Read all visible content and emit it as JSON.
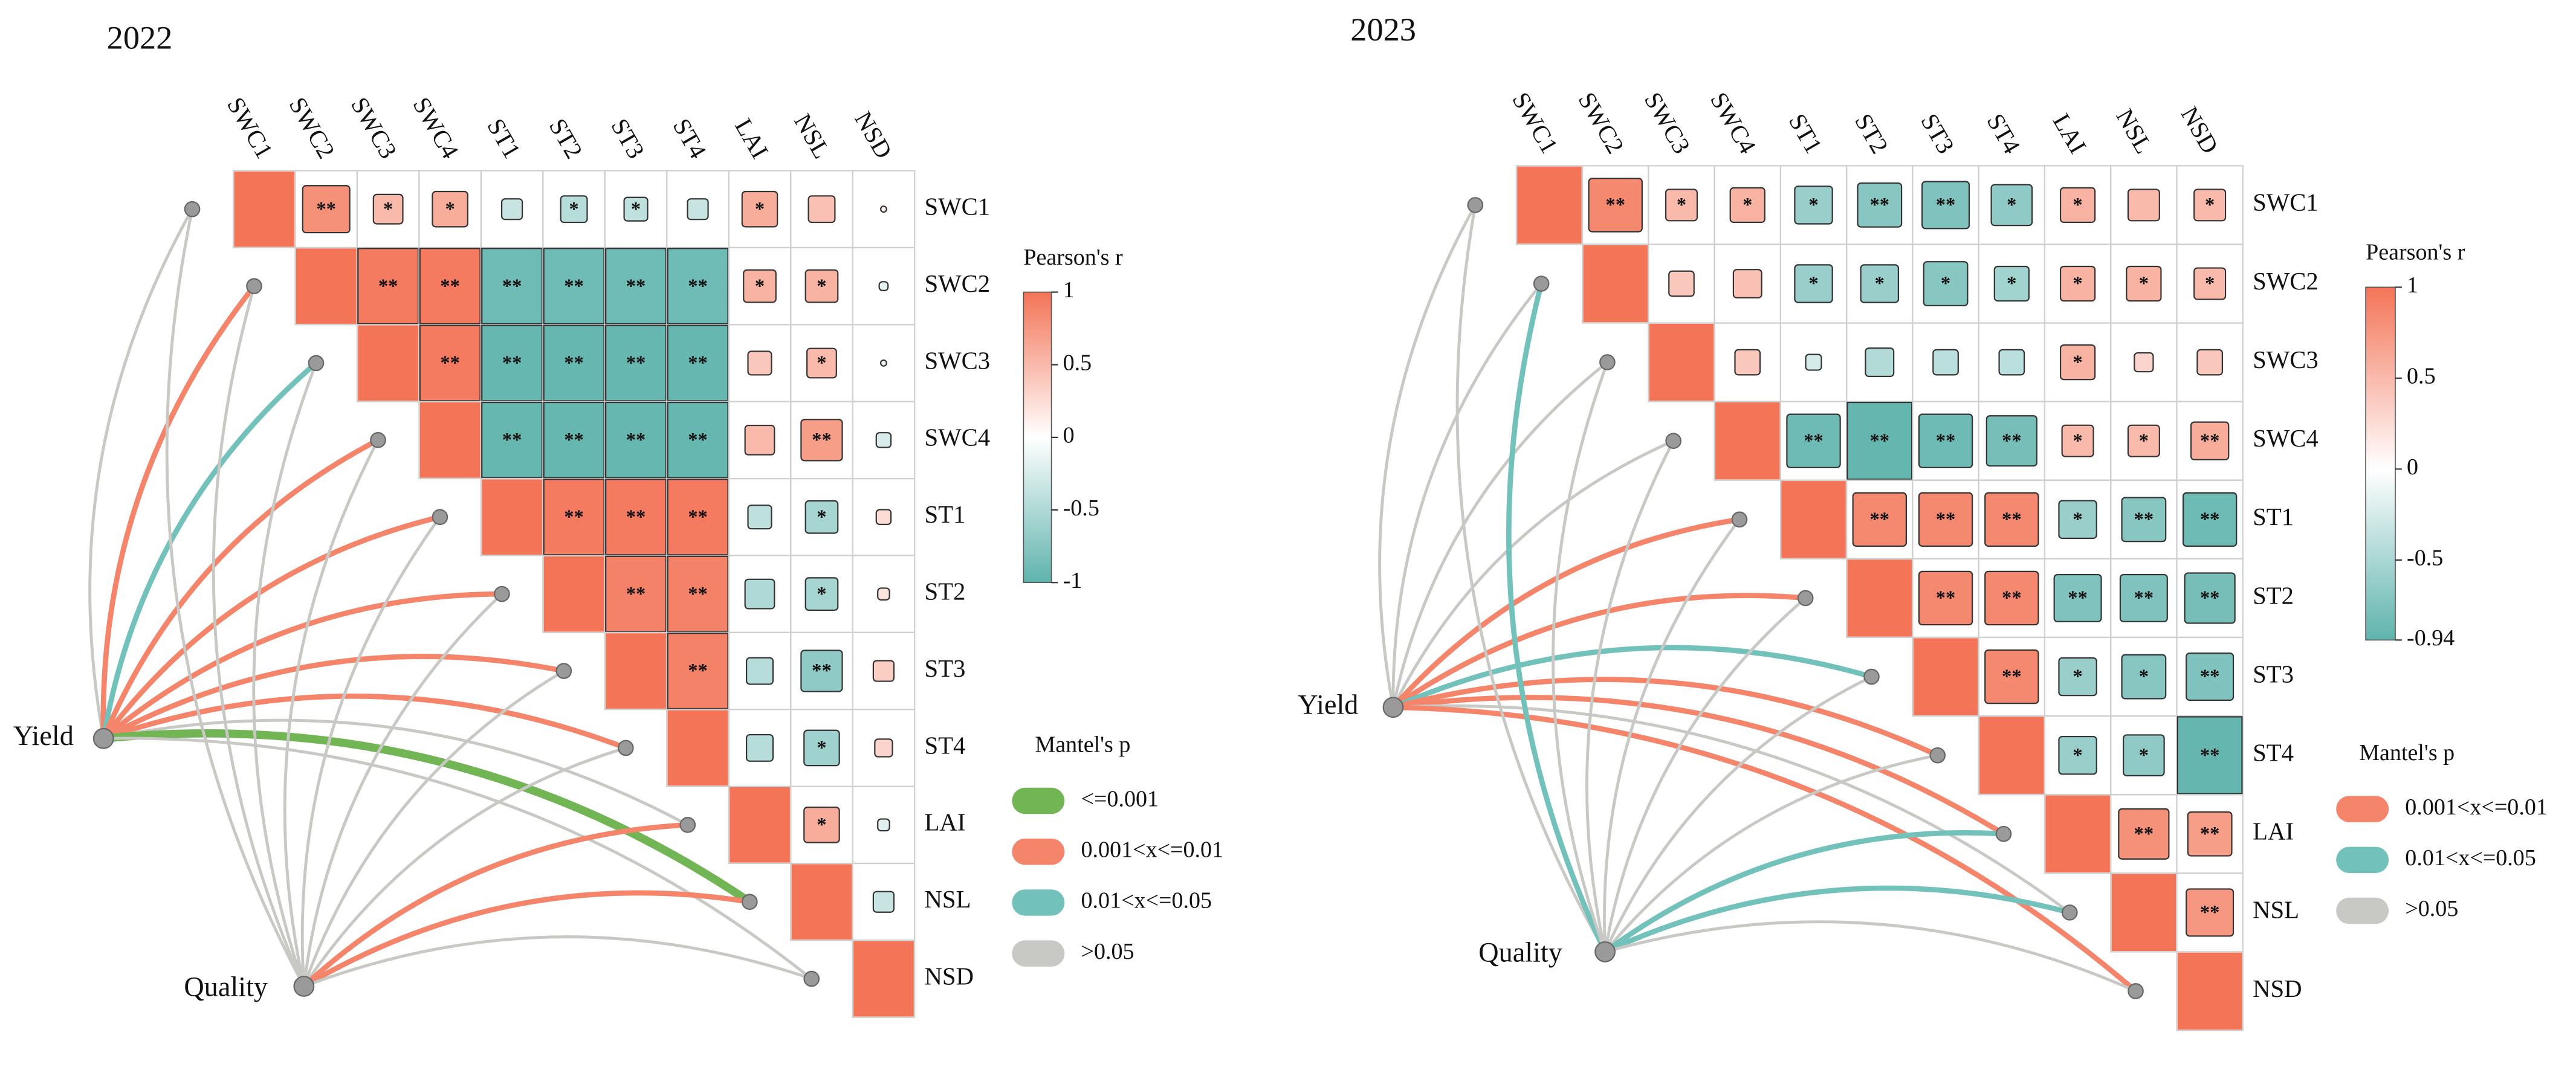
{
  "chart_data": [
    {
      "type": "mantel",
      "title": "2022",
      "variables": [
        "SWC1",
        "SWC2",
        "SWC3",
        "SWC4",
        "ST1",
        "ST2",
        "ST3",
        "ST4",
        "LAI",
        "NSL",
        "NSD"
      ],
      "values": [
        [
          1,
          0.8,
          0.5,
          0.6,
          -0.35,
          -0.45,
          -0.4,
          -0.35,
          0.6,
          0.45,
          0.1
        ],
        [
          null,
          1,
          0.95,
          0.95,
          -0.9,
          -0.9,
          -0.9,
          -0.9,
          0.55,
          0.55,
          -0.15
        ],
        [
          null,
          null,
          1,
          0.95,
          -0.95,
          -0.95,
          -0.95,
          -0.95,
          0.4,
          0.5,
          -0.1
        ],
        [
          null,
          null,
          null,
          1,
          -0.95,
          -0.95,
          -0.95,
          -0.95,
          0.5,
          0.7,
          -0.25
        ],
        [
          null,
          null,
          null,
          null,
          1,
          0.95,
          0.95,
          0.95,
          -0.4,
          -0.55,
          0.25
        ],
        [
          null,
          null,
          null,
          null,
          null,
          1,
          0.9,
          0.9,
          -0.5,
          -0.55,
          0.2
        ],
        [
          null,
          null,
          null,
          null,
          null,
          null,
          1,
          0.9,
          -0.45,
          -0.7,
          0.35
        ],
        [
          null,
          null,
          null,
          null,
          null,
          null,
          null,
          1,
          -0.45,
          -0.6,
          0.3
        ],
        [
          null,
          null,
          null,
          null,
          null,
          null,
          null,
          null,
          1,
          0.6,
          -0.2
        ],
        [
          null,
          null,
          null,
          null,
          null,
          null,
          null,
          null,
          null,
          1,
          -0.35
        ],
        [
          null,
          null,
          null,
          null,
          null,
          null,
          null,
          null,
          null,
          null,
          1
        ]
      ],
      "signif": [
        [
          null,
          "**",
          "*",
          "*",
          null,
          "*",
          "*",
          null,
          "*",
          null,
          null
        ],
        [
          null,
          null,
          "**",
          "**",
          "**",
          "**",
          "**",
          "**",
          "*",
          "*",
          null
        ],
        [
          null,
          null,
          null,
          "**",
          "**",
          "**",
          "**",
          "**",
          null,
          "*",
          null
        ],
        [
          null,
          null,
          null,
          null,
          "**",
          "**",
          "**",
          "**",
          null,
          "**",
          null
        ],
        [
          null,
          null,
          null,
          null,
          null,
          "**",
          "**",
          "**",
          null,
          "*",
          null
        ],
        [
          null,
          null,
          null,
          null,
          null,
          null,
          "**",
          "**",
          null,
          "*",
          null
        ],
        [
          null,
          null,
          null,
          null,
          null,
          null,
          null,
          "**",
          null,
          "**",
          null
        ],
        [
          null,
          null,
          null,
          null,
          null,
          null,
          null,
          null,
          null,
          "*",
          null
        ],
        [
          null,
          null,
          null,
          null,
          null,
          null,
          null,
          null,
          null,
          "*",
          null
        ],
        [
          null,
          null,
          null,
          null,
          null,
          null,
          null,
          null,
          null,
          null,
          null
        ],
        [
          null,
          null,
          null,
          null,
          null,
          null,
          null,
          null,
          null,
          null,
          null
        ]
      ],
      "colorbar_title": "Pearson's r",
      "clim": [
        -1,
        1
      ],
      "colorbar_ticks": [
        1,
        0.5,
        0,
        -0.5,
        -1
      ],
      "colors": [
        "#5fb3ad",
        "#ffffff",
        "#f37457"
      ],
      "nodes": [
        "Yield",
        "Quality"
      ],
      "mantel_p": [
        [
          3,
          1,
          2,
          1,
          1,
          1,
          1,
          1,
          3,
          0,
          3
        ],
        [
          3,
          3,
          3,
          3,
          3,
          3,
          3,
          3,
          1,
          1,
          3
        ]
      ],
      "legend_title": "Mantel's p",
      "p_classes": [
        "<=0.001",
        "0.001<x<=0.01",
        "0.01<x<=0.05",
        ">0.05"
      ],
      "p_colors": [
        "#72b555",
        "#f4846a",
        "#72c2bb",
        "#c8c8c4"
      ]
    },
    {
      "type": "mantel",
      "title": "2023",
      "variables": [
        "SWC1",
        "SWC2",
        "SWC3",
        "SWC4",
        "ST1",
        "ST2",
        "ST3",
        "ST4",
        "LAI",
        "NSL",
        "NSD"
      ],
      "values": [
        [
          1,
          0.85,
          0.5,
          0.55,
          -0.6,
          -0.7,
          -0.75,
          -0.65,
          0.55,
          0.5,
          0.5
        ],
        [
          null,
          1,
          0.4,
          0.45,
          -0.6,
          -0.6,
          -0.7,
          -0.55,
          0.55,
          0.55,
          0.5
        ],
        [
          null,
          null,
          1,
          0.4,
          -0.25,
          -0.45,
          -0.4,
          -0.4,
          0.55,
          0.3,
          0.4
        ],
        [
          null,
          null,
          null,
          1,
          -0.85,
          -0.9,
          -0.85,
          -0.8,
          0.5,
          0.5,
          0.6
        ],
        [
          null,
          null,
          null,
          null,
          1,
          0.85,
          0.85,
          0.85,
          -0.6,
          -0.7,
          -0.85
        ],
        [
          null,
          null,
          null,
          null,
          null,
          1,
          0.85,
          0.85,
          -0.75,
          -0.75,
          -0.8
        ],
        [
          null,
          null,
          null,
          null,
          null,
          null,
          1,
          0.85,
          -0.6,
          -0.7,
          -0.75
        ],
        [
          null,
          null,
          null,
          null,
          null,
          null,
          null,
          1,
          -0.6,
          -0.65,
          -0.9
        ],
        [
          null,
          null,
          null,
          null,
          null,
          null,
          null,
          null,
          1,
          0.8,
          0.7
        ],
        [
          null,
          null,
          null,
          null,
          null,
          null,
          null,
          null,
          null,
          1,
          0.75
        ],
        [
          null,
          null,
          null,
          null,
          null,
          null,
          null,
          null,
          null,
          null,
          1
        ]
      ],
      "signif": [
        [
          null,
          "**",
          "*",
          "*",
          "*",
          "**",
          "**",
          "*",
          "*",
          null,
          "*"
        ],
        [
          null,
          null,
          null,
          null,
          "*",
          "*",
          "*",
          "*",
          "*",
          "*",
          "*"
        ],
        [
          null,
          null,
          null,
          null,
          null,
          null,
          null,
          null,
          "*",
          null,
          null
        ],
        [
          null,
          null,
          null,
          null,
          "**",
          "**",
          "**",
          "**",
          "*",
          "*",
          "**"
        ],
        [
          null,
          null,
          null,
          null,
          null,
          "**",
          "**",
          "**",
          "*",
          "**",
          "**"
        ],
        [
          null,
          null,
          null,
          null,
          null,
          null,
          "**",
          "**",
          "**",
          "**",
          "**"
        ],
        [
          null,
          null,
          null,
          null,
          null,
          null,
          null,
          "**",
          "*",
          "*",
          "**"
        ],
        [
          null,
          null,
          null,
          null,
          null,
          null,
          null,
          null,
          "*",
          "*",
          "**"
        ],
        [
          null,
          null,
          null,
          null,
          null,
          null,
          null,
          null,
          null,
          "**",
          "**"
        ],
        [
          null,
          null,
          null,
          null,
          null,
          null,
          null,
          null,
          null,
          null,
          "**"
        ],
        [
          null,
          null,
          null,
          null,
          null,
          null,
          null,
          null,
          null,
          null,
          null
        ]
      ],
      "colorbar_title": "Pearson's r",
      "clim": [
        -0.94,
        1
      ],
      "colorbar_ticks": [
        1,
        0.5,
        0,
        -0.5,
        -0.94
      ],
      "colors": [
        "#5fb3ad",
        "#ffffff",
        "#f37457"
      ],
      "nodes": [
        "Yield",
        "Quality"
      ],
      "mantel_p": [
        [
          2,
          2,
          2,
          2,
          0,
          0,
          1,
          0,
          0,
          2,
          0
        ],
        [
          2,
          1,
          2,
          2,
          2,
          2,
          2,
          2,
          1,
          1,
          2
        ]
      ],
      "legend_title": "Mantel's p",
      "p_classes": [
        "0.001<x<=0.01",
        "0.01<x<=0.05",
        ">0.05"
      ],
      "p_colors": [
        "#f4846a",
        "#72c2bb",
        "#c8c8c4"
      ]
    }
  ]
}
